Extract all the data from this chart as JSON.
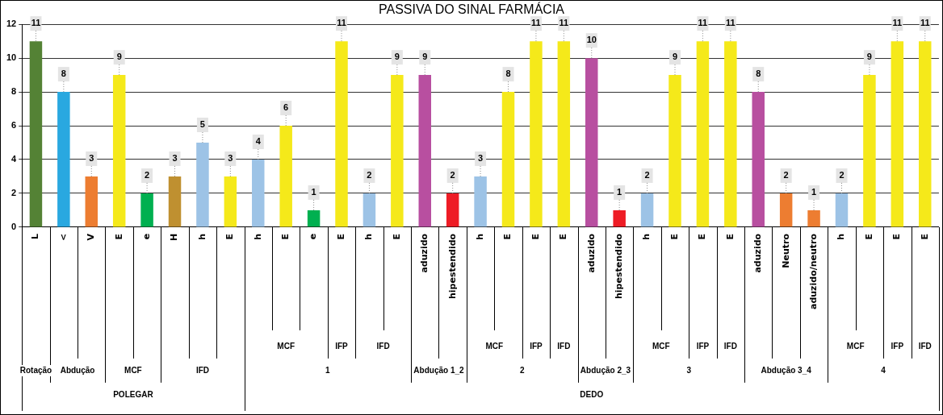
{
  "chart_data": {
    "type": "bar",
    "title": "PASSIVA DO SINAL FARMÁCIA",
    "categories": [
      "L",
      "<",
      "V",
      "E",
      "e",
      "H",
      "h",
      "E",
      "h",
      "E",
      "e",
      "E",
      "h",
      "E",
      "aduzido",
      "hipestendido",
      "h",
      "E",
      "E",
      "E",
      "aduzido",
      "hipestendido",
      "h",
      "E",
      "E",
      "E",
      "aduzido",
      "Neutro",
      "aduzido/neutro",
      "h",
      "E",
      "E",
      "E"
    ],
    "values": [
      11,
      8,
      3,
      9,
      2,
      3,
      5,
      3,
      4,
      6,
      1,
      11,
      2,
      9,
      9,
      2,
      3,
      8,
      11,
      11,
      10,
      1,
      2,
      9,
      11,
      11,
      8,
      2,
      1,
      2,
      9,
      11,
      11
    ],
    "colors": [
      "#548235",
      "#29a8e0",
      "#ed7d31",
      "#f5e91a",
      "#00b050",
      "#bf9030",
      "#9dc3e6",
      "#f5e91a",
      "#9dc3e6",
      "#f5e91a",
      "#00b050",
      "#f5e91a",
      "#9dc3e6",
      "#f5e91a",
      "#b84fa0",
      "#ee1c25",
      "#9dc3e6",
      "#f5e91a",
      "#f5e91a",
      "#f5e91a",
      "#b84fa0",
      "#ee1c25",
      "#9dc3e6",
      "#f5e91a",
      "#f5e91a",
      "#f5e91a",
      "#b84fa0",
      "#ed7d31",
      "#ed7d31",
      "#9dc3e6",
      "#f5e91a",
      "#f5e91a",
      "#f5e91a"
    ],
    "ylim": [
      0,
      12
    ],
    "yticks": [
      0,
      2,
      4,
      6,
      8,
      10,
      12
    ],
    "grid": "y",
    "legend": false,
    "data_labels": true,
    "annotations": [
      "Rotação",
      "Abdução",
      "MCF",
      "IFD",
      "POLEGAR",
      "MCF",
      "IFP",
      "IFD",
      "1",
      "Abdução 1_2",
      "MCF",
      "IFP",
      "IFD",
      "2",
      "Abdução 2_3",
      "MCF",
      "IFP",
      "IFD",
      "3",
      "Abdução 3_4",
      "MCF",
      "IFP",
      "IFD",
      "4",
      "DEDO"
    ]
  }
}
